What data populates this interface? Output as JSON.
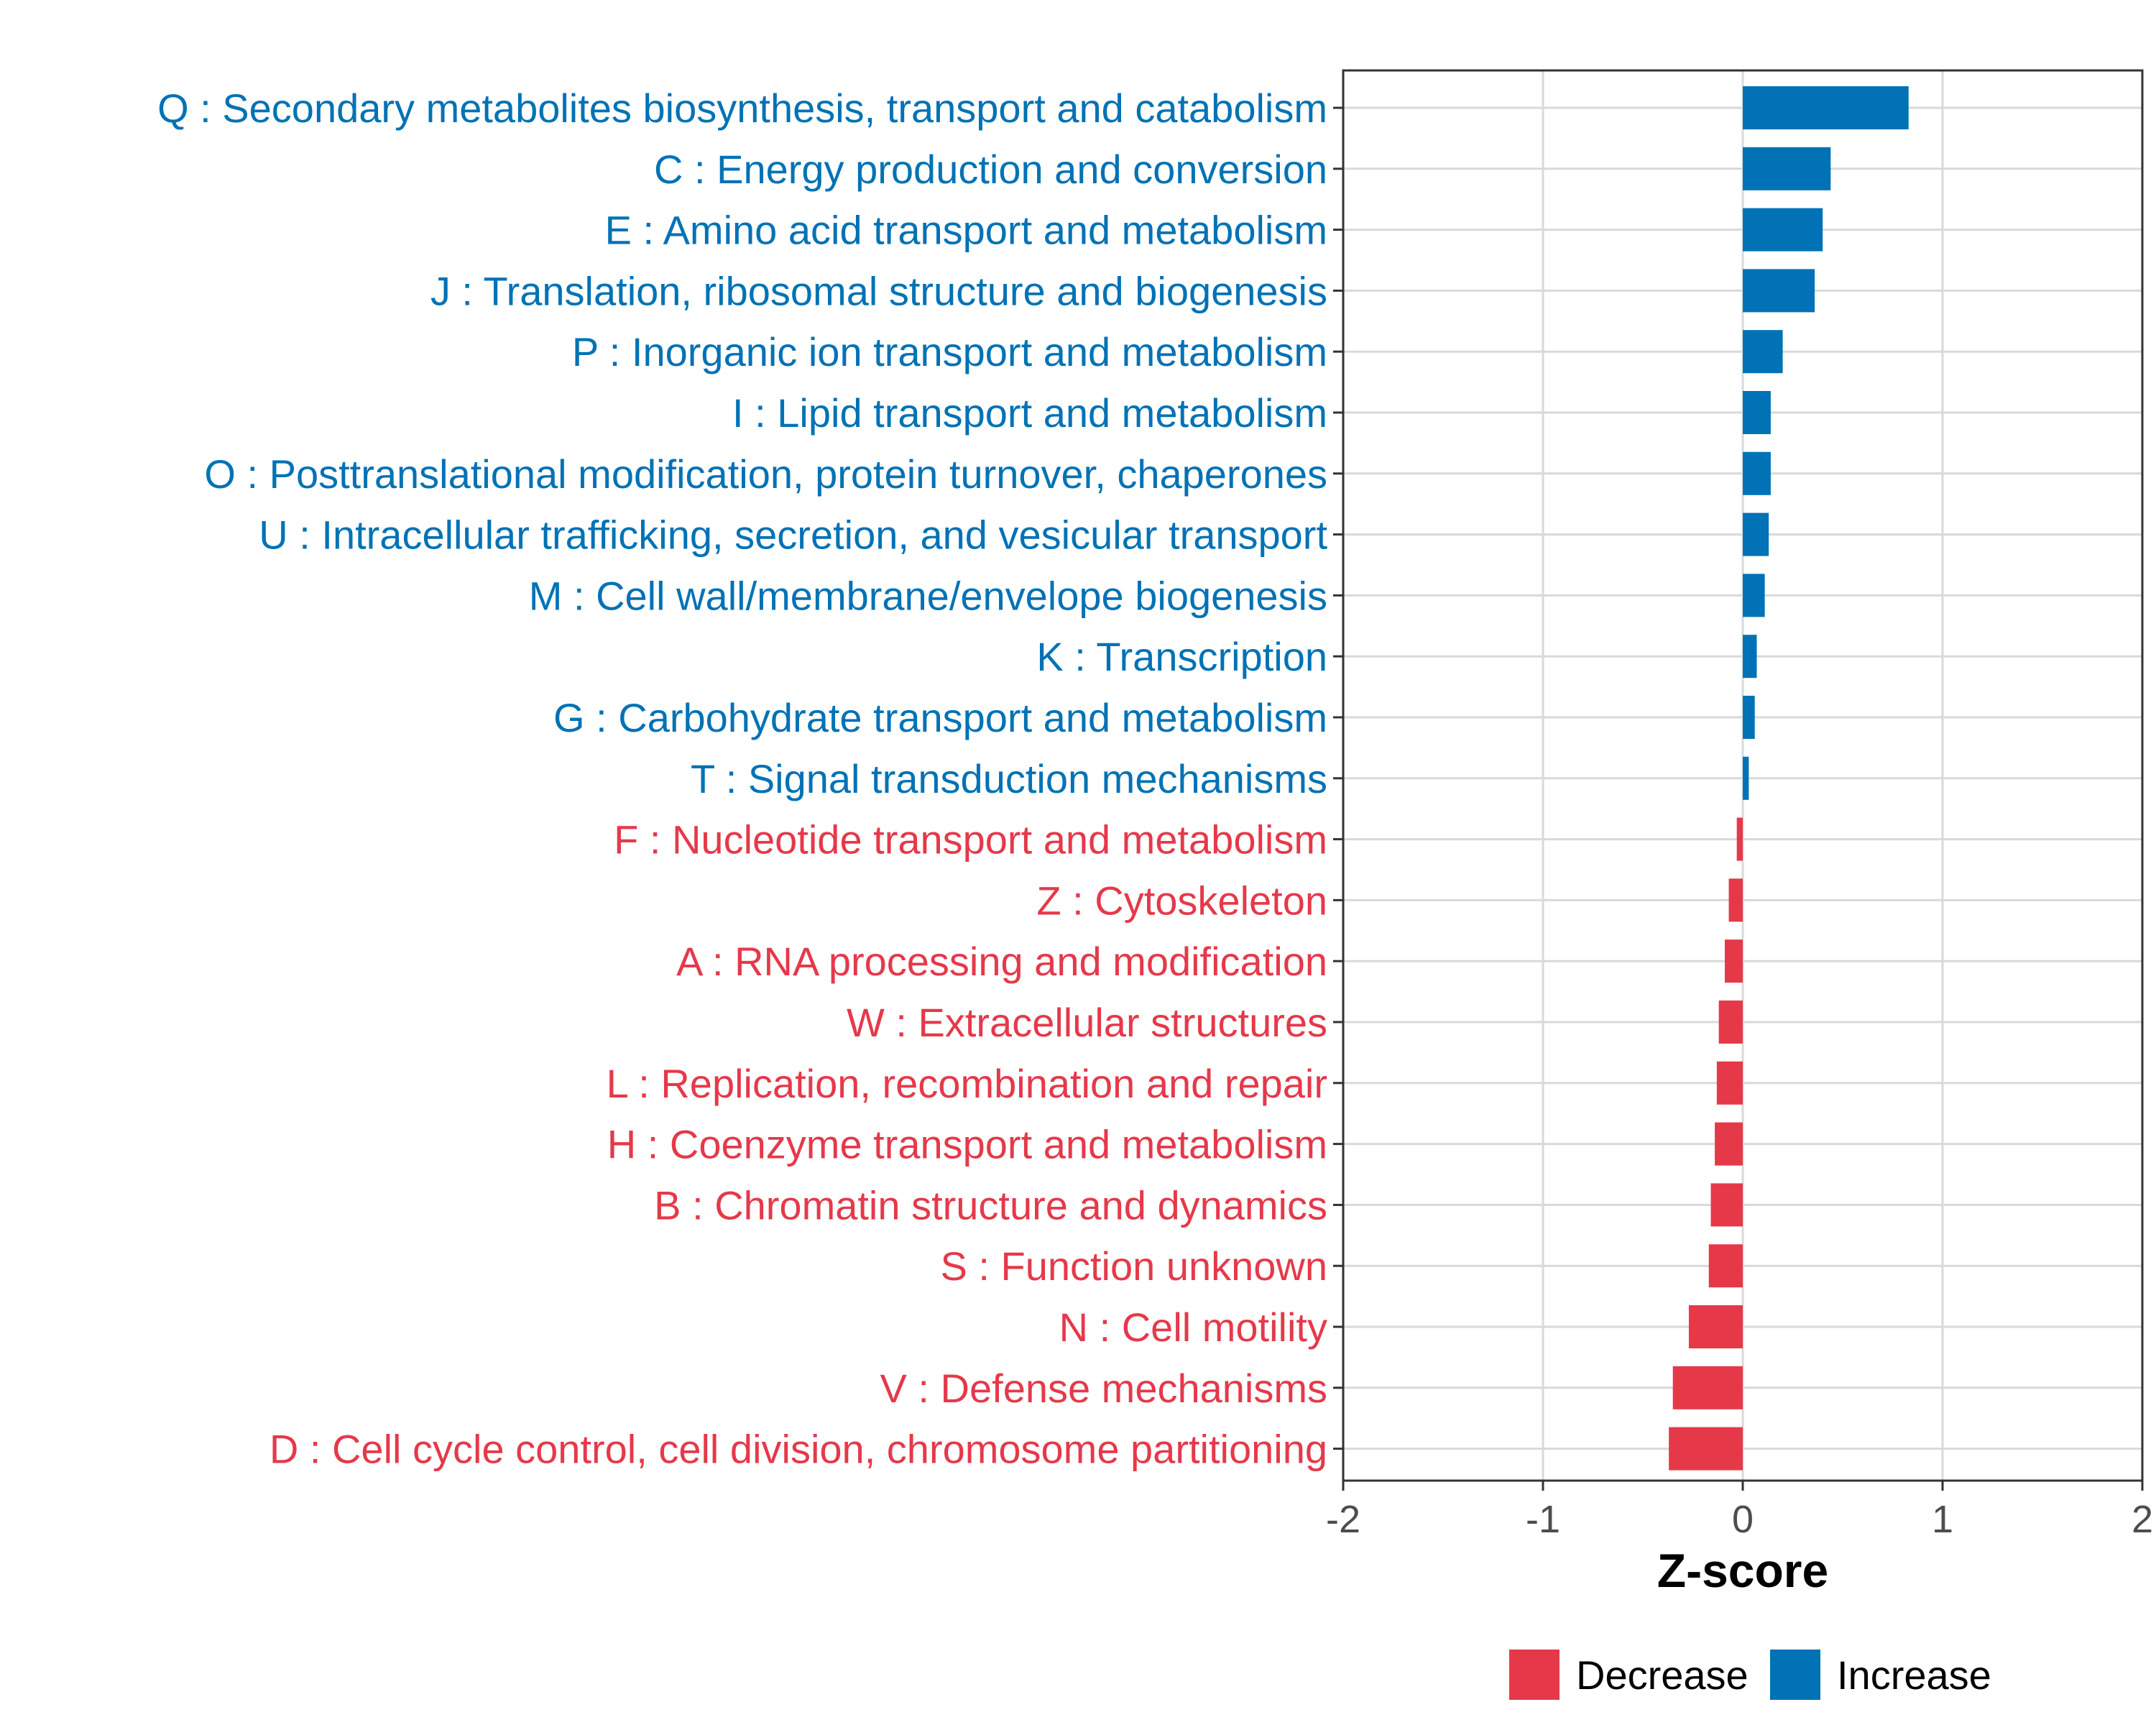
{
  "chart_data": {
    "type": "bar",
    "orientation": "horizontal",
    "title": "",
    "xlabel": "Z-score",
    "ylabel": "",
    "xlim": [
      -2,
      2
    ],
    "xticks": [
      -2,
      -1,
      0,
      1,
      2
    ],
    "xtick_labels": [
      "-2",
      "-1",
      "0",
      "1",
      "2"
    ],
    "grid": true,
    "legend_position": "bottom",
    "colors": {
      "Increase": "#0072B5",
      "Decrease": "#E5394A"
    },
    "categories": [
      "Q : Secondary metabolites biosynthesis, transport and catabolism",
      "C : Energy production and conversion",
      "E : Amino acid transport and metabolism",
      "J : Translation, ribosomal structure and biogenesis",
      "P : Inorganic ion transport and metabolism",
      "I : Lipid transport and metabolism",
      "O : Posttranslational modification, protein turnover, chaperones",
      "U : Intracellular trafficking, secretion, and vesicular transport",
      "M : Cell wall/membrane/envelope biogenesis",
      "K : Transcription",
      "G : Carbohydrate transport and metabolism",
      "T : Signal transduction mechanisms",
      "F : Nucleotide transport and metabolism",
      "Z : Cytoskeleton",
      "A : RNA processing and modification",
      "W : Extracellular structures",
      "L : Replication, recombination and repair",
      "H : Coenzyme transport and metabolism",
      "B : Chromatin structure and dynamics",
      "S : Function unknown",
      "N : Cell motility",
      "V : Defense mechanisms",
      "D : Cell cycle control, cell division, chromosome partitioning"
    ],
    "values": [
      0.83,
      0.44,
      0.4,
      0.36,
      0.2,
      0.14,
      0.14,
      0.13,
      0.11,
      0.07,
      0.06,
      0.03,
      -0.03,
      -0.07,
      -0.09,
      -0.12,
      -0.13,
      -0.14,
      -0.16,
      -0.17,
      -0.27,
      -0.35,
      -0.37
    ],
    "groups": [
      "Increase",
      "Increase",
      "Increase",
      "Increase",
      "Increase",
      "Increase",
      "Increase",
      "Increase",
      "Increase",
      "Increase",
      "Increase",
      "Increase",
      "Decrease",
      "Decrease",
      "Decrease",
      "Decrease",
      "Decrease",
      "Decrease",
      "Decrease",
      "Decrease",
      "Decrease",
      "Decrease",
      "Decrease"
    ],
    "legend": [
      "Decrease",
      "Increase"
    ]
  }
}
